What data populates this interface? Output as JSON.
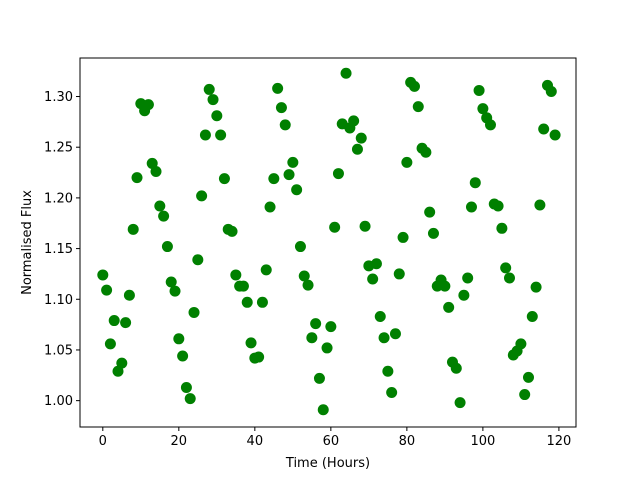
{
  "chart_data": {
    "type": "scatter",
    "xlabel": "Time (Hours)",
    "ylabel": "Normalised Flux",
    "color": "#008000",
    "x": [
      0,
      1,
      2,
      3,
      4,
      5,
      6,
      7,
      8,
      9,
      10,
      11,
      12,
      13,
      14,
      15,
      16,
      17,
      18,
      19,
      20,
      21,
      22,
      23,
      24,
      25,
      26,
      27,
      28,
      29,
      30,
      31,
      32,
      33,
      34,
      35,
      36,
      37,
      38,
      39,
      40,
      41,
      42,
      43,
      44,
      45,
      46,
      47,
      48,
      49,
      50,
      51,
      52,
      53,
      54,
      55,
      56,
      57,
      58,
      59,
      60,
      61,
      62,
      63,
      64,
      65,
      66,
      67,
      68,
      69,
      70,
      71,
      72,
      73,
      74,
      75,
      76,
      77,
      78,
      79,
      80,
      81,
      82,
      83,
      84,
      85,
      86,
      87,
      88,
      89,
      90,
      91,
      92,
      93,
      94,
      95,
      96,
      97,
      98,
      99,
      100,
      101,
      102,
      103,
      104,
      105,
      106,
      107,
      108,
      109,
      110,
      111,
      112,
      113,
      114,
      115,
      116,
      117,
      118,
      119
    ],
    "values": [
      1.124,
      1.109,
      1.056,
      1.079,
      1.029,
      1.037,
      1.077,
      1.104,
      1.169,
      1.22,
      1.293,
      1.286,
      1.292,
      1.234,
      1.226,
      1.192,
      1.182,
      1.152,
      1.117,
      1.108,
      1.061,
      1.044,
      1.013,
      1.002,
      1.087,
      1.139,
      1.202,
      1.262,
      1.307,
      1.297,
      1.281,
      1.262,
      1.219,
      1.169,
      1.167,
      1.124,
      1.113,
      1.113,
      1.097,
      1.057,
      1.042,
      1.043,
      1.097,
      1.129,
      1.191,
      1.219,
      1.308,
      1.289,
      1.272,
      1.223,
      1.235,
      1.208,
      1.152,
      1.123,
      1.114,
      1.062,
      1.076,
      1.022,
      0.991,
      1.052,
      1.073,
      1.171,
      1.224,
      1.273,
      1.323,
      1.269,
      1.276,
      1.248,
      1.259,
      1.172,
      1.133,
      1.12,
      1.135,
      1.083,
      1.062,
      1.029,
      1.008,
      1.066,
      1.125,
      1.161,
      1.235,
      1.314,
      1.31,
      1.29,
      1.249,
      1.245,
      1.186,
      1.165,
      1.113,
      1.119,
      1.113,
      1.092,
      1.038,
      1.032,
      0.998,
      1.104,
      1.121,
      1.191,
      1.215,
      1.306,
      1.288,
      1.279,
      1.272,
      1.194,
      1.192,
      1.17,
      1.131,
      1.121,
      1.045,
      1.049,
      1.056,
      1.006,
      1.023,
      1.083,
      1.112,
      1.193,
      1.268,
      1.311,
      1.305,
      1.262
    ],
    "xlim": [
      -6,
      124.5
    ],
    "ylim": [
      0.974,
      1.338
    ],
    "xticks": [
      0,
      20,
      40,
      60,
      80,
      100,
      120
    ],
    "yticks": [
      {
        "value": 1,
        "label": "1.00"
      },
      1.05,
      {
        "value": 1.1,
        "label": "1.10"
      },
      1.15,
      {
        "value": 1.2,
        "label": "1.20"
      },
      1.25,
      {
        "value": 1.3,
        "label": "1.30"
      }
    ]
  }
}
